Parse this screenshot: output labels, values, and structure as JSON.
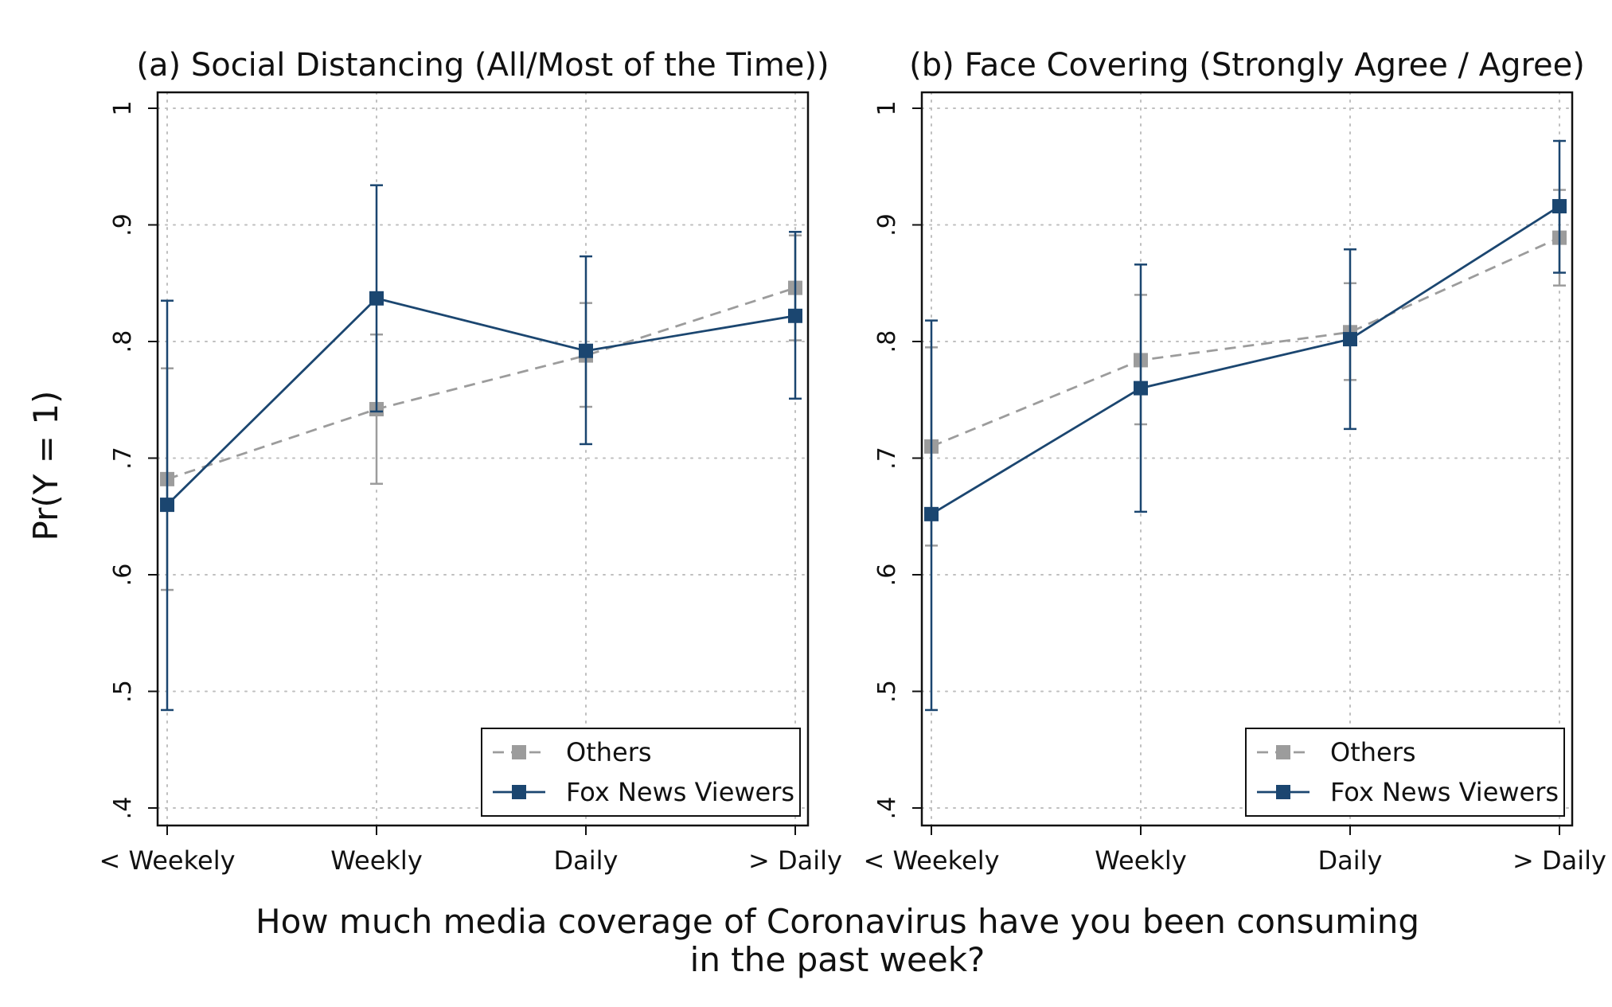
{
  "figure": {
    "y_label": "Pr(Y = 1)",
    "x_label_line1": "How much media coverage of Coronavirus have you been consuming",
    "x_label_line2": "in the past week?"
  },
  "colors": {
    "others": "#9c9c9c",
    "fox": "#1b4670",
    "frame": "#111111",
    "grid": "#bfbfbf"
  },
  "chart_data": [
    {
      "type": "line",
      "title": "(a) Social Distancing (All/Most of the Time))",
      "xlabel": "How much media coverage of Coronavirus have you been consuming in the past week?",
      "ylabel": "Pr(Y = 1)",
      "categories": [
        "< Weekely",
        "Weekly",
        "Daily",
        "> Daily"
      ],
      "ylim": [
        0.4,
        1.0
      ],
      "yticks": [
        ".4",
        ".5",
        ".6",
        ".7",
        ".8",
        ".9",
        "1"
      ],
      "grid": true,
      "legend_position": "bottom-right",
      "series": [
        {
          "name": "Others",
          "values": [
            0.682,
            0.742,
            0.788,
            0.846
          ],
          "ci_low": [
            0.587,
            0.678,
            0.744,
            0.801
          ],
          "ci_high": [
            0.777,
            0.806,
            0.833,
            0.891
          ]
        },
        {
          "name": "Fox News Viewers",
          "values": [
            0.66,
            0.837,
            0.792,
            0.822
          ],
          "ci_low": [
            0.484,
            0.74,
            0.712,
            0.751
          ],
          "ci_high": [
            0.835,
            0.934,
            0.873,
            0.894
          ]
        }
      ]
    },
    {
      "type": "line",
      "title": "(b) Face Covering (Strongly Agree / Agree)",
      "xlabel": "How much media coverage of Coronavirus have you been consuming in the past week?",
      "ylabel": "Pr(Y = 1)",
      "categories": [
        "< Weekely",
        "Weekly",
        "Daily",
        "> Daily"
      ],
      "ylim": [
        0.4,
        1.0
      ],
      "yticks": [
        ".4",
        ".5",
        ".6",
        ".7",
        ".8",
        ".9",
        "1"
      ],
      "grid": true,
      "legend_position": "bottom-right",
      "series": [
        {
          "name": "Others",
          "values": [
            0.71,
            0.784,
            0.808,
            0.889
          ],
          "ci_low": [
            0.625,
            0.729,
            0.767,
            0.848
          ],
          "ci_high": [
            0.795,
            0.84,
            0.85,
            0.93
          ]
        },
        {
          "name": "Fox News Viewers",
          "values": [
            0.652,
            0.76,
            0.802,
            0.916
          ],
          "ci_low": [
            0.484,
            0.654,
            0.725,
            0.859
          ],
          "ci_high": [
            0.818,
            0.866,
            0.879,
            0.972
          ]
        }
      ]
    }
  ]
}
